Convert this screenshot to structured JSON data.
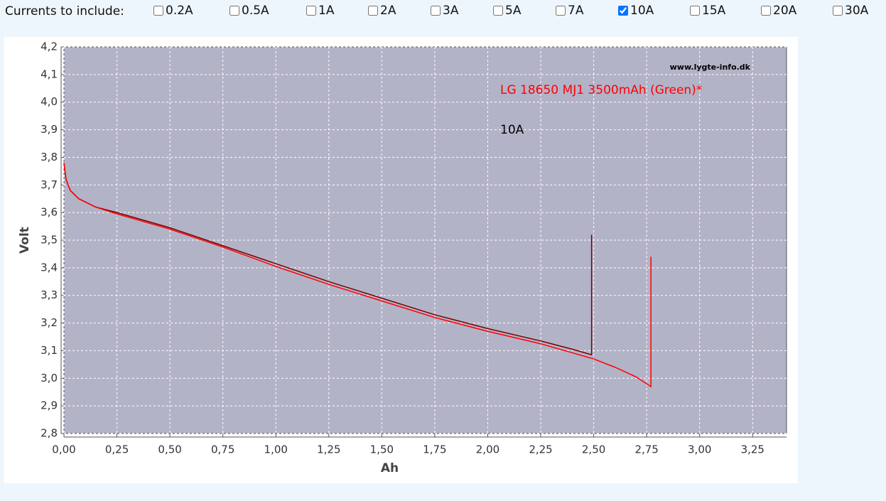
{
  "controls": {
    "label": "Currents to include:",
    "options": [
      {
        "label": "0.2A",
        "checked": false
      },
      {
        "label": "0.5A",
        "checked": false
      },
      {
        "label": "1A",
        "checked": false
      },
      {
        "label": "2A",
        "checked": false
      },
      {
        "label": "3A",
        "checked": false
      },
      {
        "label": "5A",
        "checked": false
      },
      {
        "label": "7A",
        "checked": false
      },
      {
        "label": "10A",
        "checked": true
      },
      {
        "label": "15A",
        "checked": false
      },
      {
        "label": "20A",
        "checked": false
      },
      {
        "label": "30A",
        "checked": false
      }
    ]
  },
  "chart_data": {
    "type": "line",
    "watermark": "www.lygte-info.dk",
    "annotations": [
      {
        "text": "LG 18650 MJ1 3500mAh (Green)*",
        "color": "#ff0000"
      },
      {
        "text": "10A",
        "color": "#000000"
      }
    ],
    "xlabel": "Ah",
    "ylabel": "Volt",
    "xlim": [
      0,
      3.41
    ],
    "ylim": [
      2.8,
      4.2
    ],
    "grid": true,
    "xticks": [
      {
        "value": 0,
        "label": "0,00"
      },
      {
        "value": 0.25,
        "label": "0,25"
      },
      {
        "value": 0.5,
        "label": "0,50"
      },
      {
        "value": 0.75,
        "label": "0,75"
      },
      {
        "value": 1,
        "label": "1,00"
      },
      {
        "value": 1.25,
        "label": "1,25"
      },
      {
        "value": 1.5,
        "label": "1,50"
      },
      {
        "value": 1.75,
        "label": "1,75"
      },
      {
        "value": 2,
        "label": "2,00"
      },
      {
        "value": 2.25,
        "label": "2,25"
      },
      {
        "value": 2.5,
        "label": "2,50"
      },
      {
        "value": 2.75,
        "label": "2,75"
      },
      {
        "value": 3,
        "label": "3,00"
      },
      {
        "value": 3.25,
        "label": "3,25"
      }
    ],
    "yticks": [
      {
        "value": 2.8,
        "label": "2,8"
      },
      {
        "value": 2.9,
        "label": "2,9"
      },
      {
        "value": 3,
        "label": "3,0"
      },
      {
        "value": 3.1,
        "label": "3,1"
      },
      {
        "value": 3.2,
        "label": "3,2"
      },
      {
        "value": 3.3,
        "label": "3,3"
      },
      {
        "value": 3.4,
        "label": "3,4"
      },
      {
        "value": 3.5,
        "label": "3,5"
      },
      {
        "value": 3.6,
        "label": "3,6"
      },
      {
        "value": 3.7,
        "label": "3,7"
      },
      {
        "value": 3.8,
        "label": "3,8"
      },
      {
        "value": 3.9,
        "label": "3,9"
      },
      {
        "value": 4,
        "label": "4,0"
      },
      {
        "value": 4.1,
        "label": "4,1"
      },
      {
        "value": 4.2,
        "label": "4,2"
      }
    ],
    "series": [
      {
        "color": "#7a0000",
        "x": [
          0,
          0.01,
          0.03,
          0.07,
          0.15,
          0.25,
          0.5,
          0.75,
          1.0,
          1.25,
          1.5,
          1.75,
          2.0,
          2.25,
          2.4,
          2.49,
          2.49
        ],
        "values": [
          3.78,
          3.72,
          3.68,
          3.65,
          3.62,
          3.6,
          3.545,
          3.48,
          3.415,
          3.35,
          3.29,
          3.23,
          3.18,
          3.135,
          3.105,
          3.085,
          3.52
        ]
      },
      {
        "color": "#ff0000",
        "x": [
          0,
          0.01,
          0.03,
          0.07,
          0.15,
          0.25,
          0.5,
          0.75,
          1.0,
          1.25,
          1.5,
          1.75,
          2.0,
          2.25,
          2.5,
          2.6,
          2.7,
          2.77,
          2.77
        ],
        "values": [
          3.78,
          3.72,
          3.68,
          3.65,
          3.62,
          3.595,
          3.54,
          3.475,
          3.405,
          3.34,
          3.28,
          3.22,
          3.17,
          3.125,
          3.07,
          3.04,
          3.005,
          2.97,
          3.44
        ]
      }
    ]
  }
}
